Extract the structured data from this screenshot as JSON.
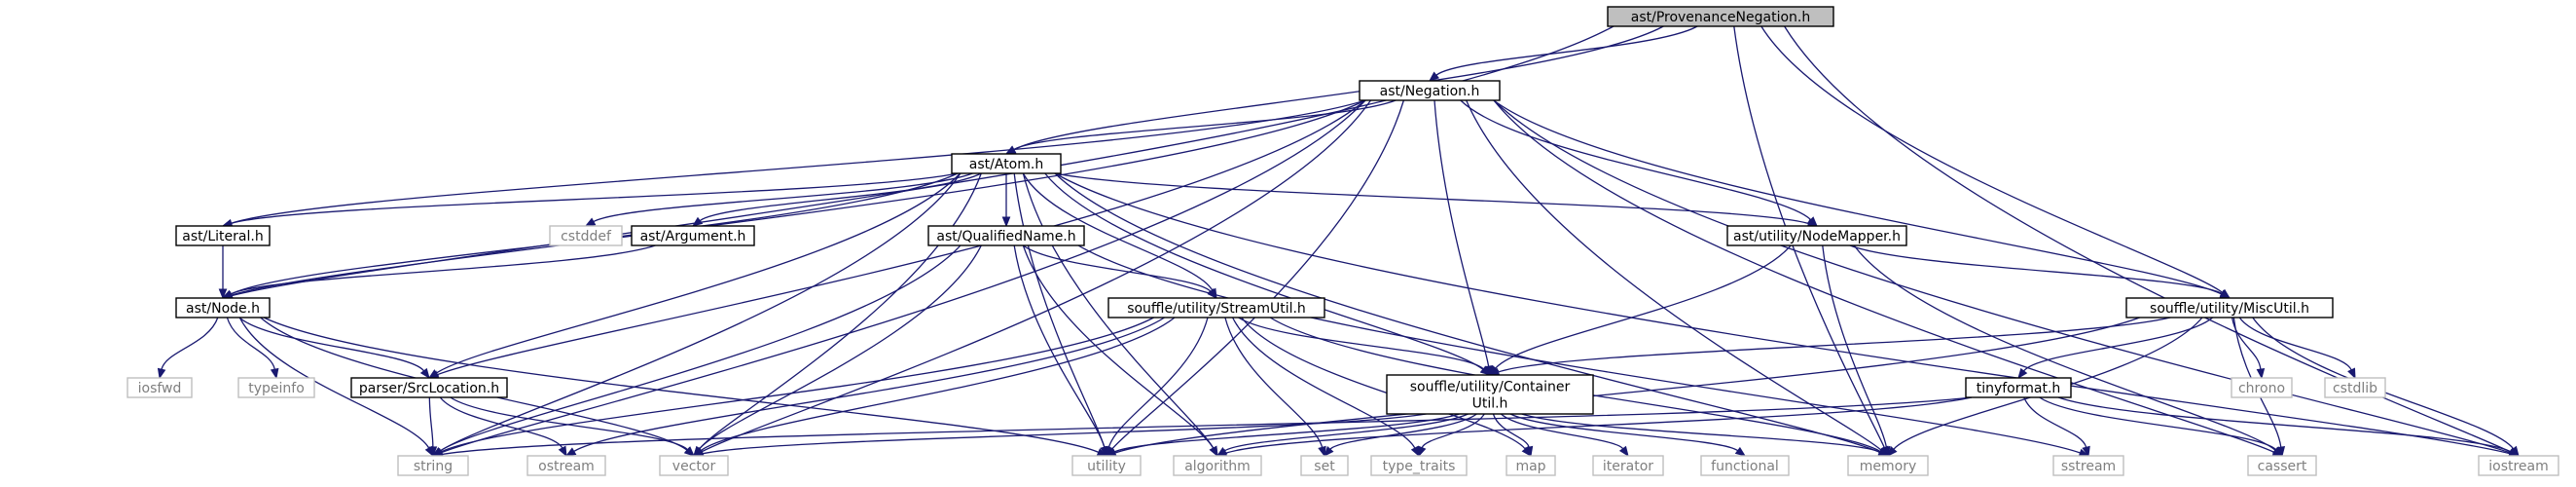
{
  "graph": {
    "nodes": {
      "provnegation": {
        "lines": [
          "ast/ProvenanceNegation.h"
        ],
        "kind": "root"
      },
      "negation": {
        "lines": [
          "ast/Negation.h"
        ],
        "kind": "local"
      },
      "atom": {
        "lines": [
          "ast/Atom.h"
        ],
        "kind": "local"
      },
      "literal": {
        "lines": [
          "ast/Literal.h"
        ],
        "kind": "local"
      },
      "node": {
        "lines": [
          "ast/Node.h"
        ],
        "kind": "local"
      },
      "argument": {
        "lines": [
          "ast/Argument.h"
        ],
        "kind": "local"
      },
      "qualifiedname": {
        "lines": [
          "ast/QualifiedName.h"
        ],
        "kind": "local"
      },
      "nodemapper": {
        "lines": [
          "ast/utility/NodeMapper.h"
        ],
        "kind": "local"
      },
      "miscutil": {
        "lines": [
          "souffle/utility/MiscUtil.h"
        ],
        "kind": "local"
      },
      "streamutil": {
        "lines": [
          "souffle/utility/StreamUtil.h"
        ],
        "kind": "local"
      },
      "containerutil": {
        "lines": [
          "souffle/utility/Container",
          "Util.h"
        ],
        "kind": "local"
      },
      "srclocation": {
        "lines": [
          "parser/SrcLocation.h"
        ],
        "kind": "local"
      },
      "tinyformat": {
        "lines": [
          "tinyformat.h"
        ],
        "kind": "local"
      },
      "cstddef": {
        "lines": [
          "cstddef"
        ],
        "kind": "system"
      },
      "iosfwd": {
        "lines": [
          "iosfwd"
        ],
        "kind": "system"
      },
      "typeinfo": {
        "lines": [
          "typeinfo"
        ],
        "kind": "system"
      },
      "string": {
        "lines": [
          "string"
        ],
        "kind": "system"
      },
      "ostream": {
        "lines": [
          "ostream"
        ],
        "kind": "system"
      },
      "vector": {
        "lines": [
          "vector"
        ],
        "kind": "system"
      },
      "utility": {
        "lines": [
          "utility"
        ],
        "kind": "system"
      },
      "algorithm": {
        "lines": [
          "algorithm"
        ],
        "kind": "system"
      },
      "set": {
        "lines": [
          "set"
        ],
        "kind": "system"
      },
      "type_traits": {
        "lines": [
          "type_traits"
        ],
        "kind": "system"
      },
      "map": {
        "lines": [
          "map"
        ],
        "kind": "system"
      },
      "iterator": {
        "lines": [
          "iterator"
        ],
        "kind": "system"
      },
      "functional": {
        "lines": [
          "functional"
        ],
        "kind": "system"
      },
      "memory": {
        "lines": [
          "memory"
        ],
        "kind": "system"
      },
      "sstream": {
        "lines": [
          "sstream"
        ],
        "kind": "system"
      },
      "cassert": {
        "lines": [
          "cassert"
        ],
        "kind": "system"
      },
      "iostream": {
        "lines": [
          "iostream"
        ],
        "kind": "system"
      },
      "chrono": {
        "lines": [
          "chrono"
        ],
        "kind": "system"
      },
      "cstdlib": {
        "lines": [
          "cstdlib"
        ],
        "kind": "system"
      }
    },
    "edges": [
      [
        "provnegation",
        "negation"
      ],
      [
        "provnegation",
        "atom"
      ],
      [
        "provnegation",
        "node"
      ],
      [
        "provnegation",
        "memory"
      ],
      [
        "provnegation",
        "miscutil"
      ],
      [
        "provnegation",
        "iostream"
      ],
      [
        "negation",
        "atom"
      ],
      [
        "negation",
        "literal"
      ],
      [
        "negation",
        "node"
      ],
      [
        "negation",
        "nodemapper"
      ],
      [
        "negation",
        "srclocation"
      ],
      [
        "negation",
        "containerutil"
      ],
      [
        "negation",
        "miscutil"
      ],
      [
        "negation",
        "memory"
      ],
      [
        "negation",
        "string"
      ],
      [
        "negation",
        "utility"
      ],
      [
        "negation",
        "vector"
      ],
      [
        "negation",
        "cassert"
      ],
      [
        "negation",
        "iostream"
      ],
      [
        "atom",
        "literal"
      ],
      [
        "atom",
        "node"
      ],
      [
        "atom",
        "argument"
      ],
      [
        "atom",
        "cstddef"
      ],
      [
        "atom",
        "qualifiedname"
      ],
      [
        "atom",
        "nodemapper"
      ],
      [
        "atom",
        "streamutil"
      ],
      [
        "atom",
        "containerutil"
      ],
      [
        "atom",
        "srclocation"
      ],
      [
        "atom",
        "string"
      ],
      [
        "atom",
        "vector"
      ],
      [
        "atom",
        "utility"
      ],
      [
        "atom",
        "algorithm"
      ],
      [
        "atom",
        "memory"
      ],
      [
        "atom",
        "iostream"
      ],
      [
        "literal",
        "node"
      ],
      [
        "argument",
        "node"
      ],
      [
        "node",
        "iosfwd"
      ],
      [
        "node",
        "typeinfo"
      ],
      [
        "node",
        "string"
      ],
      [
        "node",
        "vector"
      ],
      [
        "node",
        "srclocation"
      ],
      [
        "node",
        "utility"
      ],
      [
        "qualifiedname",
        "streamutil"
      ],
      [
        "qualifiedname",
        "string"
      ],
      [
        "qualifiedname",
        "vector"
      ],
      [
        "qualifiedname",
        "utility"
      ],
      [
        "qualifiedname",
        "algorithm"
      ],
      [
        "qualifiedname",
        "sstream"
      ],
      [
        "nodemapper",
        "containerutil"
      ],
      [
        "nodemapper",
        "miscutil"
      ],
      [
        "nodemapper",
        "memory"
      ],
      [
        "nodemapper",
        "cassert"
      ],
      [
        "miscutil",
        "containerutil"
      ],
      [
        "miscutil",
        "tinyformat"
      ],
      [
        "miscutil",
        "chrono"
      ],
      [
        "miscutil",
        "cstdlib"
      ],
      [
        "miscutil",
        "memory"
      ],
      [
        "miscutil",
        "cassert"
      ],
      [
        "miscutil",
        "iostream"
      ],
      [
        "miscutil",
        "utility"
      ],
      [
        "streamutil",
        "containerutil"
      ],
      [
        "streamutil",
        "string"
      ],
      [
        "streamutil",
        "ostream"
      ],
      [
        "streamutil",
        "vector"
      ],
      [
        "streamutil",
        "utility"
      ],
      [
        "streamutil",
        "set"
      ],
      [
        "streamutil",
        "type_traits"
      ],
      [
        "streamutil",
        "map"
      ],
      [
        "streamutil",
        "memory"
      ],
      [
        "containerutil",
        "vector"
      ],
      [
        "containerutil",
        "utility"
      ],
      [
        "containerutil",
        "algorithm"
      ],
      [
        "containerutil",
        "set"
      ],
      [
        "containerutil",
        "type_traits"
      ],
      [
        "containerutil",
        "map"
      ],
      [
        "containerutil",
        "iterator"
      ],
      [
        "containerutil",
        "functional"
      ],
      [
        "containerutil",
        "memory"
      ],
      [
        "srclocation",
        "string"
      ],
      [
        "srclocation",
        "ostream"
      ],
      [
        "srclocation",
        "vector"
      ],
      [
        "tinyformat",
        "string"
      ],
      [
        "tinyformat",
        "algorithm"
      ],
      [
        "tinyformat",
        "sstream"
      ],
      [
        "tinyformat",
        "cassert"
      ],
      [
        "tinyformat",
        "iostream"
      ]
    ]
  },
  "colors": {
    "edge": "#191970",
    "root_fill": "#bfbfbf",
    "local_fill": "#ffffff",
    "local_border": "#000000",
    "system_border": "#bfbfbf",
    "local_text": "#000000",
    "system_text": "#7f7f7f"
  }
}
